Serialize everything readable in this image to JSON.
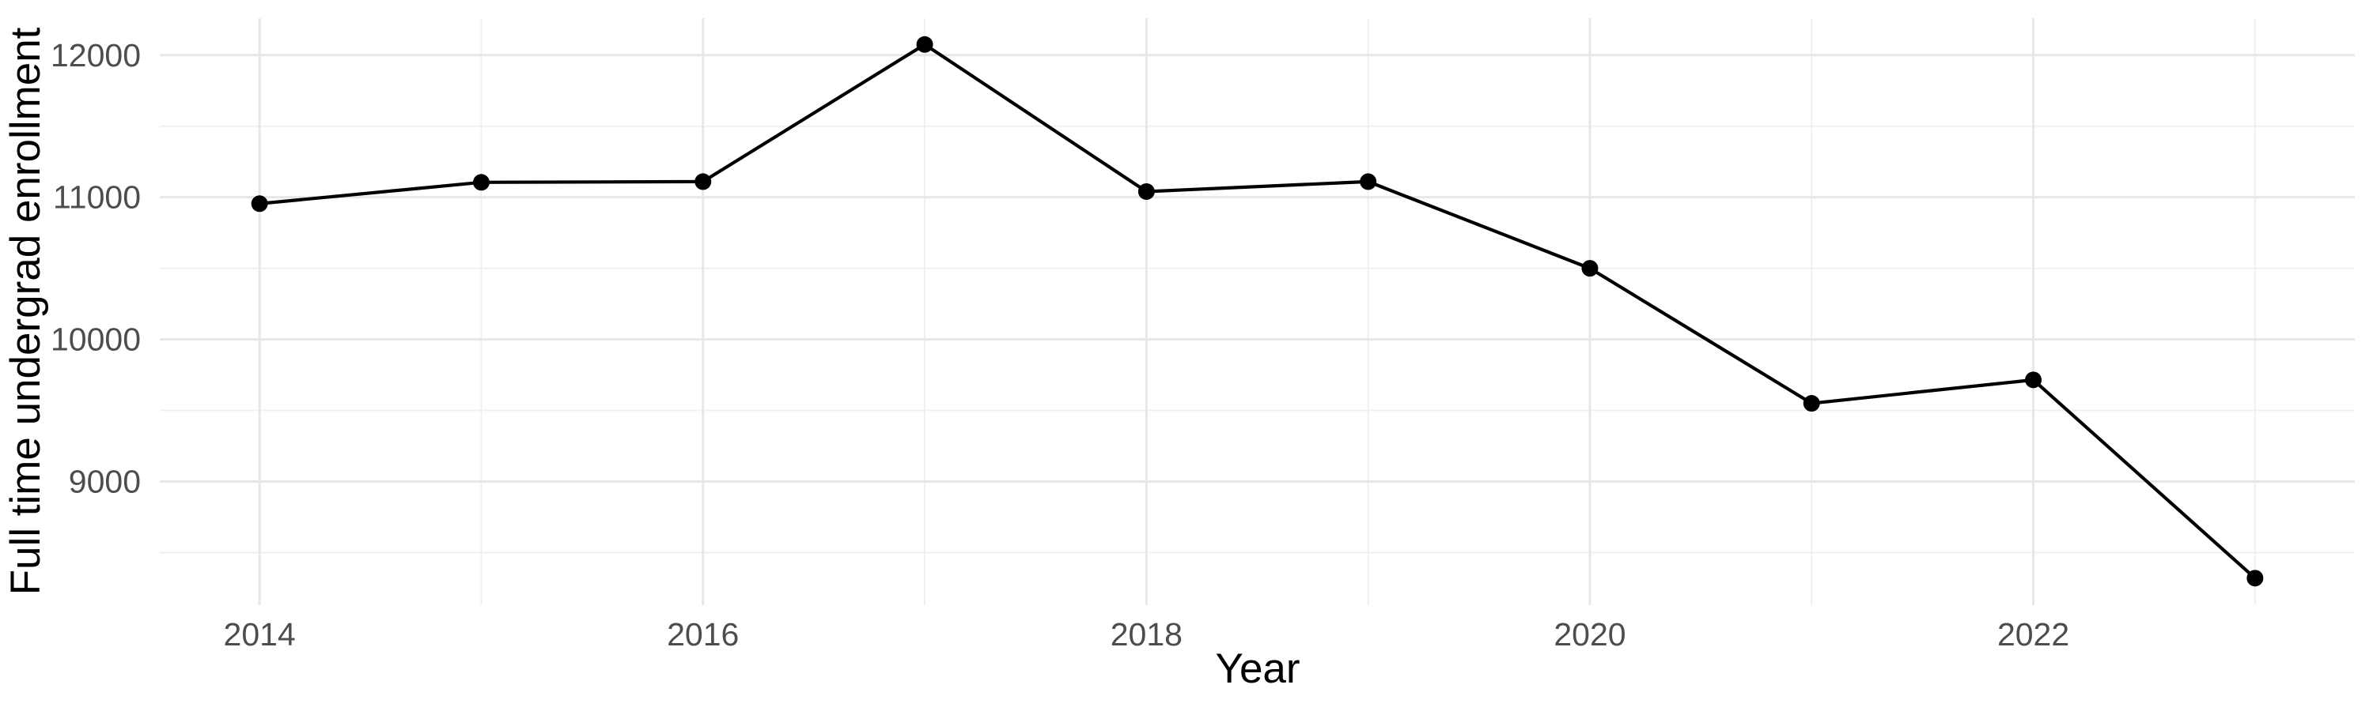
{
  "chart_data": {
    "type": "line",
    "title": "",
    "xlabel": "Year",
    "ylabel": "Full time undergrad enrollment",
    "x": [
      2014,
      2015,
      2016,
      2017,
      2018,
      2019,
      2020,
      2021,
      2022,
      2023
    ],
    "values": [
      10955,
      11105,
      11110,
      12075,
      11040,
      11110,
      10500,
      9550,
      9715,
      8320
    ],
    "series_name": "Full time undergrad enrollment",
    "x_ticks": [
      2014,
      2016,
      2018,
      2020,
      2022
    ],
    "x_minor_ticks": [
      2015,
      2017,
      2019,
      2021,
      2023
    ],
    "y_ticks": [
      9000,
      10000,
      11000,
      12000
    ],
    "y_minor_ticks": [
      8500,
      9500,
      10500,
      11500
    ],
    "xlim": [
      2013.55,
      2023.45
    ],
    "ylim": [
      8130,
      12260
    ],
    "grid": true,
    "legend_position": "none",
    "colors": {
      "line": "#000000",
      "point": "#000000",
      "grid_major": "#e7e7e7",
      "grid_minor": "#efefef",
      "tick_label": "#4d4d4d",
      "axis_title": "#000000",
      "background": "#ffffff"
    }
  }
}
